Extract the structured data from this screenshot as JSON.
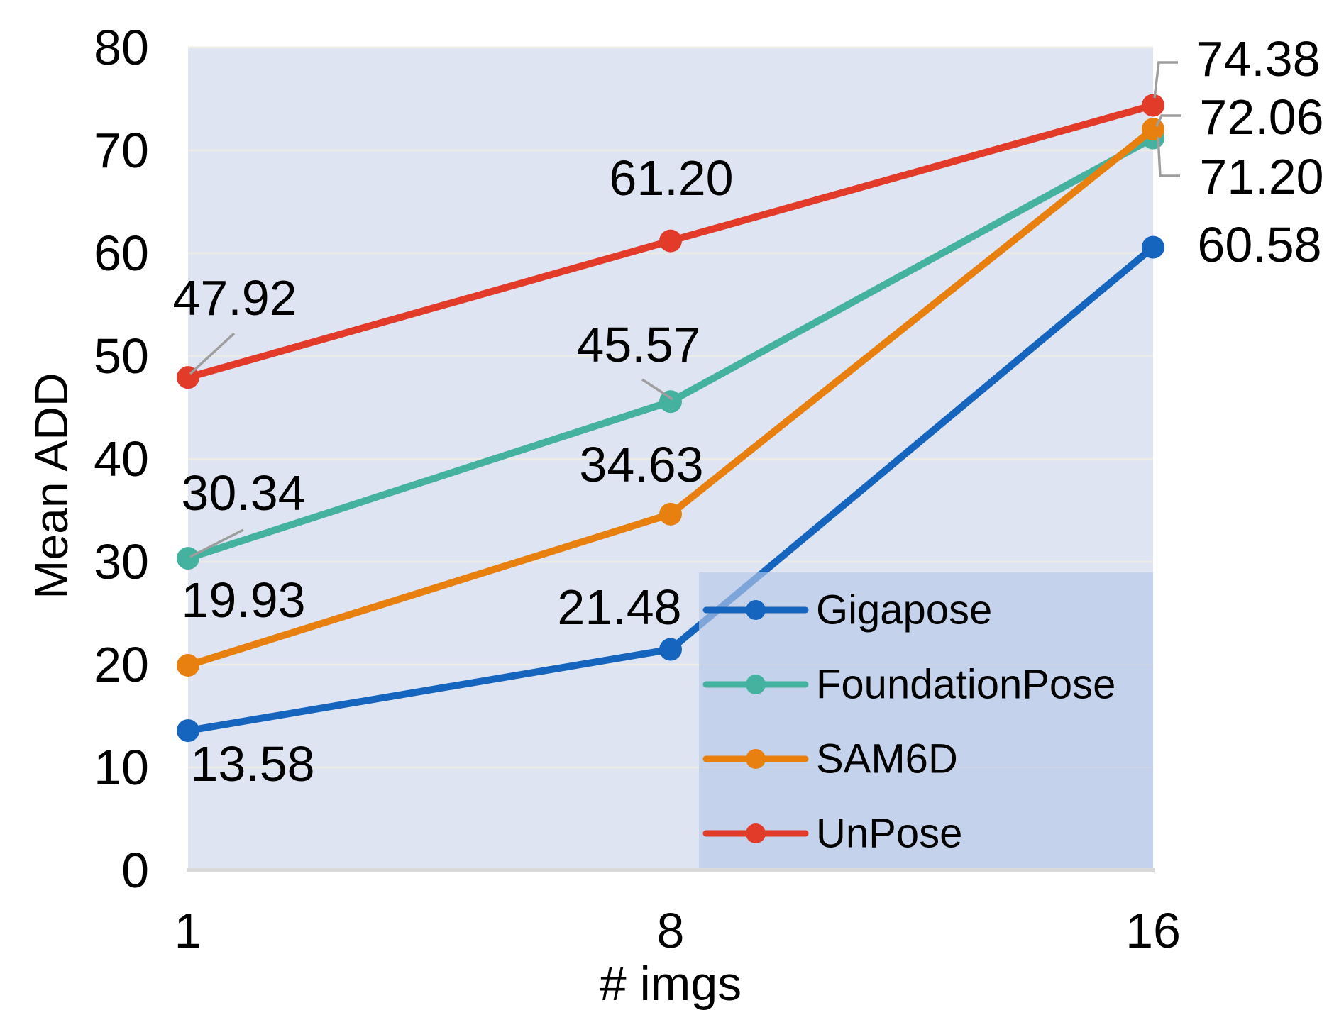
{
  "chart_data": {
    "type": "line",
    "title": "",
    "xlabel": "# imgs",
    "ylabel": "Mean ADD",
    "x_categories": [
      "1",
      "8",
      "16"
    ],
    "x_values": [
      1,
      8,
      16
    ],
    "ylim": [
      0,
      80
    ],
    "yticks": [
      "0",
      "10",
      "20",
      "30",
      "40",
      "50",
      "60",
      "70",
      "80"
    ],
    "grid": true,
    "legend_position": "inside-bottom-right",
    "series": [
      {
        "name": "Gigapose",
        "color": "#1565bf",
        "values": [
          13.58,
          21.48,
          60.58
        ],
        "labels": [
          "13.58",
          "21.48",
          "60.58"
        ]
      },
      {
        "name": "FoundationPose",
        "color": "#45b2a0",
        "values": [
          30.34,
          45.57,
          71.2
        ],
        "labels": [
          "30.34",
          "45.57",
          "71.20"
        ]
      },
      {
        "name": "SAM6D",
        "color": "#e8800f",
        "values": [
          19.93,
          34.63,
          72.06
        ],
        "labels": [
          "19.93",
          "34.63",
          "72.06"
        ]
      },
      {
        "name": "UnPose",
        "color": "#e23b2a",
        "values": [
          47.92,
          61.2,
          74.38
        ],
        "labels": [
          "47.92",
          "61.20",
          "74.38"
        ]
      }
    ],
    "style_colors": {
      "plot_background": "#dfe4f2",
      "legend_background": "#b7c7e6",
      "gridline": "#ecebe5",
      "axis_line": "#d9d9d9",
      "leader_line": "#9e9e9e",
      "text": "#000000"
    }
  }
}
